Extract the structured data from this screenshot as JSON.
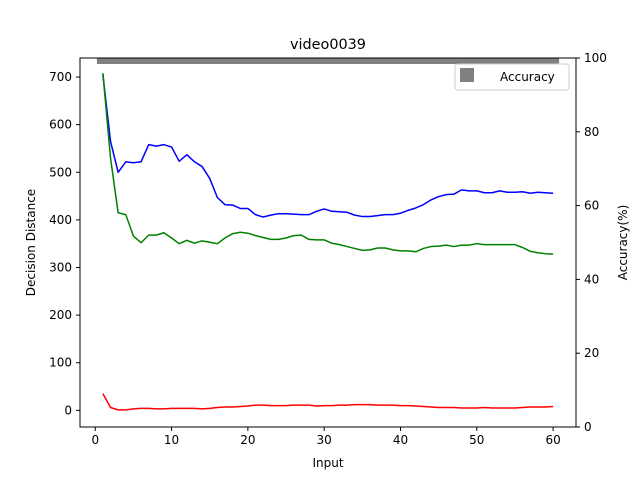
{
  "chart_data": {
    "type": "line",
    "title": "video0039",
    "xlabel": "Input",
    "ylabel": "Decision Distance",
    "y2label": "Accuracy(%)",
    "xlim": [
      -2,
      63
    ],
    "ylim": [
      -35,
      740
    ],
    "y2lim": [
      0,
      100
    ],
    "xticks": [
      0,
      10,
      20,
      30,
      40,
      50,
      60
    ],
    "yticks": [
      0,
      100,
      200,
      300,
      400,
      500,
      600,
      700
    ],
    "y2ticks": [
      0,
      20,
      40,
      60,
      80,
      100
    ],
    "grid": false,
    "legend": {
      "position": "top-right",
      "entries": [
        "Accuracy"
      ]
    },
    "x": [
      1,
      2,
      3,
      4,
      5,
      6,
      7,
      8,
      9,
      10,
      11,
      12,
      13,
      14,
      15,
      16,
      17,
      18,
      19,
      20,
      21,
      22,
      23,
      24,
      25,
      26,
      27,
      28,
      29,
      30,
      31,
      32,
      33,
      34,
      35,
      36,
      37,
      38,
      39,
      40,
      41,
      42,
      43,
      44,
      45,
      46,
      47,
      48,
      49,
      50,
      51,
      52,
      53,
      54,
      55,
      56,
      57,
      58,
      59,
      60
    ],
    "series": [
      {
        "color": "#0000ff",
        "values": [
          705,
          565,
          500,
          522,
          520,
          522,
          558,
          555,
          558,
          553,
          523,
          537,
          522,
          512,
          487,
          447,
          432,
          431,
          424,
          424,
          411,
          406,
          410,
          413,
          413,
          412,
          411,
          411,
          418,
          423,
          418,
          417,
          416,
          410,
          407,
          407,
          409,
          411,
          411,
          414,
          420,
          425,
          432,
          442,
          449,
          453,
          454,
          463,
          461,
          461,
          457,
          457,
          461,
          458,
          458,
          459,
          456,
          458,
          457,
          456
        ]
      },
      {
        "color": "#008000",
        "values": [
          708,
          530,
          415,
          411,
          366,
          352,
          368,
          368,
          373,
          362,
          350,
          357,
          351,
          356,
          353,
          350,
          362,
          371,
          374,
          372,
          367,
          363,
          359,
          359,
          362,
          367,
          368,
          359,
          358,
          358,
          351,
          348,
          344,
          340,
          336,
          337,
          341,
          341,
          337,
          335,
          335,
          333,
          340,
          344,
          345,
          347,
          344,
          347,
          347,
          350,
          348,
          348,
          348,
          348,
          348,
          342,
          334,
          331,
          329,
          328
        ]
      },
      {
        "color": "#ff0000",
        "values": [
          35,
          6,
          1,
          1,
          3,
          4,
          4,
          3,
          3,
          4,
          4,
          4,
          4,
          3,
          4,
          6,
          7,
          7,
          8,
          9,
          11,
          11,
          10,
          10,
          10,
          11,
          11,
          11,
          9,
          10,
          10,
          11,
          11,
          12,
          12,
          12,
          11,
          11,
          11,
          10,
          10,
          9,
          8,
          7,
          6,
          6,
          6,
          5,
          5,
          5,
          6,
          5,
          5,
          5,
          5,
          6,
          7,
          7,
          7,
          8
        ]
      }
    ],
    "accuracy_markers": {
      "name": "Accuracy",
      "color": "#808080",
      "values": [
        100,
        100,
        100,
        100,
        100,
        100,
        100,
        100,
        100,
        100,
        100,
        100,
        100,
        100,
        100,
        100,
        100,
        100,
        100,
        100,
        100,
        100,
        100,
        100,
        100,
        100,
        100,
        100,
        100,
        100,
        100,
        100,
        100,
        100,
        100,
        100,
        100,
        100,
        100,
        100,
        100,
        100,
        100,
        100,
        100,
        100,
        100,
        100,
        100,
        100,
        100,
        100,
        100,
        100,
        100,
        100,
        100,
        100,
        100,
        100
      ]
    }
  }
}
